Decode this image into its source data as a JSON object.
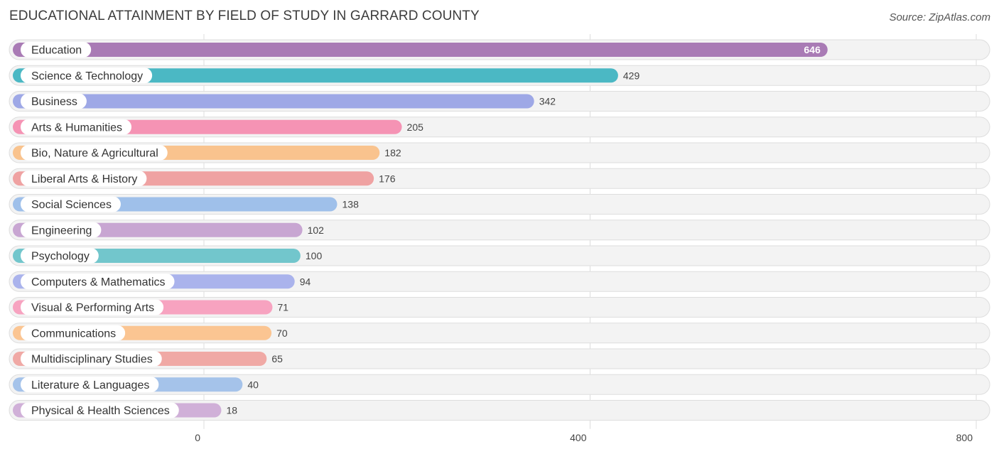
{
  "chart_data": {
    "type": "bar",
    "orientation": "horizontal",
    "title": "EDUCATIONAL ATTAINMENT BY FIELD OF STUDY IN GARRARD COUNTY",
    "source": "Source: ZipAtlas.com",
    "xlabel": "",
    "ylabel": "",
    "xlim": [
      0,
      800
    ],
    "ticks": [
      0,
      400,
      800
    ],
    "tick_labels": [
      "0",
      "400",
      "800"
    ],
    "grid": true,
    "categories": [
      "Education",
      "Science & Technology",
      "Business",
      "Arts & Humanities",
      "Bio, Nature & Agricultural",
      "Liberal Arts & History",
      "Social Sciences",
      "Engineering",
      "Psychology",
      "Computers & Mathematics",
      "Visual & Performing Arts",
      "Communications",
      "Multidisciplinary Studies",
      "Literature & Languages",
      "Physical & Health Sciences"
    ],
    "values": [
      646,
      429,
      342,
      205,
      182,
      176,
      138,
      102,
      100,
      94,
      71,
      70,
      65,
      40,
      18
    ],
    "value_labels": [
      "646",
      "429",
      "342",
      "205",
      "182",
      "176",
      "138",
      "102",
      "100",
      "94",
      "71",
      "70",
      "65",
      "40",
      "18"
    ],
    "colors": [
      "#a97bb5",
      "#4bb8c4",
      "#9ea8e6",
      "#f593b4",
      "#f9c38e",
      "#efa2a2",
      "#9fc0ea",
      "#c8a6d2",
      "#72c6cc",
      "#aab3ec",
      "#f7a3c0",
      "#fbc592",
      "#f0a9a5",
      "#a5c3ea",
      "#d0b0d8"
    ],
    "label_inside_bar": [
      true,
      false,
      false,
      false,
      false,
      false,
      false,
      false,
      false,
      false,
      false,
      false,
      false,
      false,
      false
    ]
  }
}
